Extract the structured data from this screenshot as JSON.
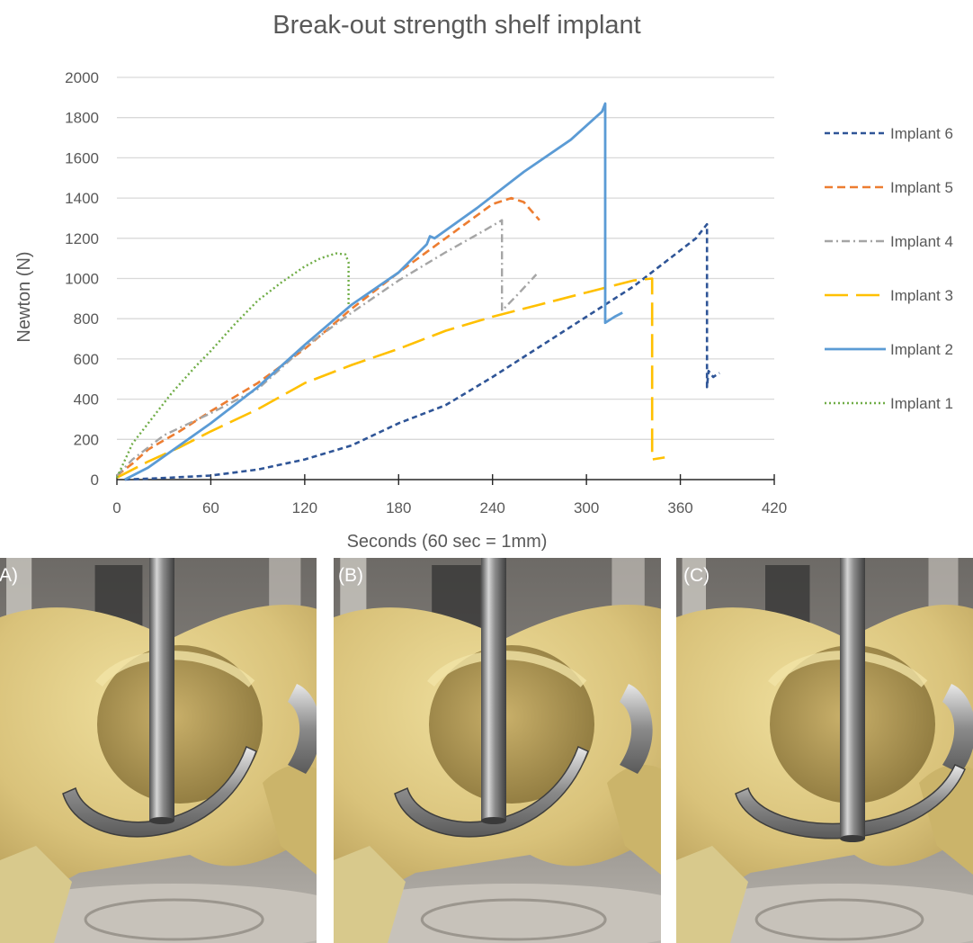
{
  "chart_data": {
    "type": "line",
    "title": "Break-out strength shelf implant",
    "xlabel": "Seconds (60 sec = 1mm)",
    "ylabel": "Newton (N)",
    "xlim": [
      0,
      420
    ],
    "ylim": [
      0,
      2000
    ],
    "x_ticks": [
      0,
      60,
      120,
      180,
      240,
      300,
      360,
      420
    ],
    "y_ticks": [
      0,
      200,
      400,
      600,
      800,
      1000,
      1200,
      1400,
      1600,
      1800,
      2000
    ],
    "grid": "horizontal",
    "legend": "right",
    "series": [
      {
        "name": "Implant 6",
        "color": "#2f5597",
        "dash": "6,4",
        "width": 2.6,
        "points": [
          [
            5,
            0
          ],
          [
            30,
            8
          ],
          [
            60,
            20
          ],
          [
            90,
            50
          ],
          [
            120,
            100
          ],
          [
            150,
            170
          ],
          [
            180,
            280
          ],
          [
            210,
            370
          ],
          [
            240,
            510
          ],
          [
            270,
            660
          ],
          [
            300,
            810
          ],
          [
            330,
            960
          ],
          [
            350,
            1080
          ],
          [
            370,
            1200
          ],
          [
            377,
            1270
          ],
          [
            377,
            460
          ],
          [
            378,
            540
          ],
          [
            381,
            510
          ],
          [
            385,
            530
          ]
        ]
      },
      {
        "name": "Implant 5",
        "color": "#ed7d31",
        "dash": "9,5",
        "width": 2.6,
        "points": [
          [
            0,
            20
          ],
          [
            10,
            80
          ],
          [
            20,
            150
          ],
          [
            40,
            240
          ],
          [
            60,
            340
          ],
          [
            90,
            480
          ],
          [
            120,
            650
          ],
          [
            150,
            850
          ],
          [
            180,
            1030
          ],
          [
            210,
            1200
          ],
          [
            240,
            1370
          ],
          [
            252,
            1400
          ],
          [
            260,
            1380
          ],
          [
            270,
            1290
          ]
        ]
      },
      {
        "name": "Implant 4",
        "color": "#a5a5a5",
        "dash": "9,4,2,4",
        "width": 2.4,
        "points": [
          [
            0,
            20
          ],
          [
            10,
            100
          ],
          [
            30,
            220
          ],
          [
            60,
            330
          ],
          [
            90,
            450
          ],
          [
            120,
            660
          ],
          [
            150,
            830
          ],
          [
            180,
            990
          ],
          [
            210,
            1130
          ],
          [
            235,
            1240
          ],
          [
            246,
            1290
          ],
          [
            246,
            840
          ],
          [
            256,
            920
          ],
          [
            268,
            1020
          ]
        ]
      },
      {
        "name": "Implant 3",
        "color": "#ffc000",
        "dash": "26,9",
        "width": 2.6,
        "points": [
          [
            0,
            10
          ],
          [
            20,
            90
          ],
          [
            40,
            160
          ],
          [
            60,
            240
          ],
          [
            90,
            350
          ],
          [
            120,
            480
          ],
          [
            150,
            570
          ],
          [
            180,
            650
          ],
          [
            210,
            740
          ],
          [
            240,
            810
          ],
          [
            270,
            870
          ],
          [
            300,
            930
          ],
          [
            330,
            990
          ],
          [
            342,
            1000
          ],
          [
            342,
            100
          ],
          [
            350,
            110
          ]
        ]
      },
      {
        "name": "Implant 2",
        "color": "#5b9bd5",
        "dash": "",
        "width": 2.8,
        "points": [
          [
            5,
            0
          ],
          [
            20,
            60
          ],
          [
            40,
            170
          ],
          [
            60,
            280
          ],
          [
            90,
            460
          ],
          [
            120,
            670
          ],
          [
            150,
            870
          ],
          [
            180,
            1030
          ],
          [
            198,
            1170
          ],
          [
            200,
            1210
          ],
          [
            203,
            1200
          ],
          [
            230,
            1350
          ],
          [
            260,
            1530
          ],
          [
            290,
            1690
          ],
          [
            310,
            1830
          ],
          [
            312,
            1870
          ],
          [
            312,
            780
          ],
          [
            318,
            810
          ],
          [
            323,
            830
          ]
        ]
      },
      {
        "name": "Implant 1",
        "color": "#70ad47",
        "dash": "2,3",
        "width": 2.4,
        "points": [
          [
            0,
            10
          ],
          [
            10,
            180
          ],
          [
            20,
            280
          ],
          [
            35,
            430
          ],
          [
            50,
            560
          ],
          [
            60,
            640
          ],
          [
            75,
            770
          ],
          [
            90,
            890
          ],
          [
            105,
            980
          ],
          [
            120,
            1060
          ],
          [
            130,
            1100
          ],
          [
            140,
            1125
          ],
          [
            146,
            1120
          ],
          [
            148,
            1080
          ],
          [
            148,
            860
          ]
        ]
      }
    ]
  },
  "photos": [
    {
      "label": "(A)",
      "pin_x": 180,
      "shift": 0
    },
    {
      "label": "(B)",
      "pin_x": 178,
      "shift": 0
    },
    {
      "label": "(C)",
      "pin_x": 196,
      "shift": 20
    }
  ]
}
